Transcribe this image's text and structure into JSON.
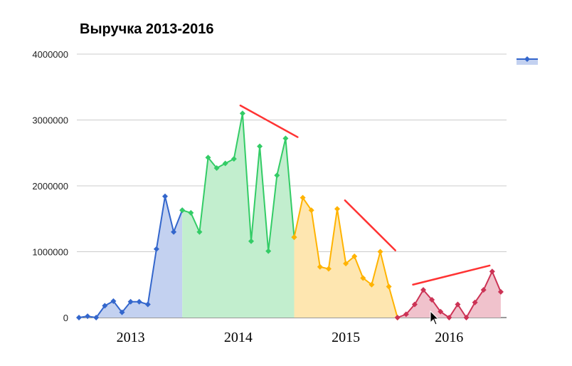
{
  "chart_data": {
    "type": "area",
    "title": "Выручка 2013-2016",
    "xlabel": "",
    "ylabel": "",
    "ylim": [
      0,
      4000000
    ],
    "y_ticks": [
      0,
      1000000,
      2000000,
      3000000,
      4000000
    ],
    "grid": true,
    "legend": {
      "position": "top-right",
      "entries": [
        {
          "name": "",
          "color": "#3366cc"
        }
      ]
    },
    "x_year_labels": [
      "2013",
      "2014",
      "2015",
      "2016"
    ],
    "periods": [
      {
        "year": "2013",
        "color": "#3366cc",
        "fill": "#c3d1f0",
        "values": [
          0,
          20000,
          0,
          180000,
          250000,
          80000,
          240000,
          240000,
          200000,
          1040000,
          1840000,
          1300000,
          1630000
        ]
      },
      {
        "year": "2014",
        "color": "#33cc66",
        "fill": "#c2eece",
        "values": [
          1630000,
          1590000,
          1300000,
          2430000,
          2270000,
          2340000,
          2410000,
          3100000,
          1160000,
          2600000,
          1010000,
          2160000,
          2720000,
          1220000
        ]
      },
      {
        "year": "2015",
        "color": "#ffb300",
        "fill": "#fee6b0",
        "values": [
          1220000,
          1820000,
          1630000,
          770000,
          740000,
          1650000,
          820000,
          930000,
          600000,
          500000,
          1000000,
          470000,
          0
        ]
      },
      {
        "year": "2016",
        "color": "#cc3355",
        "fill": "#f0c2cc",
        "values": [
          0,
          50000,
          200000,
          420000,
          270000,
          90000,
          0,
          200000,
          0,
          230000,
          420000,
          700000,
          390000
        ]
      }
    ],
    "trend_lines": [
      {
        "color": "#ff3333",
        "x": [
          18.75,
          25.4
        ],
        "y": [
          3220000,
          2740000
        ]
      },
      {
        "color": "#ff3333",
        "x": [
          30.9,
          36.75
        ],
        "y": [
          1780000,
          1020000
        ]
      },
      {
        "color": "#ff3333",
        "x": [
          38.8,
          47.7
        ],
        "y": [
          500000,
          790000
        ]
      }
    ]
  }
}
